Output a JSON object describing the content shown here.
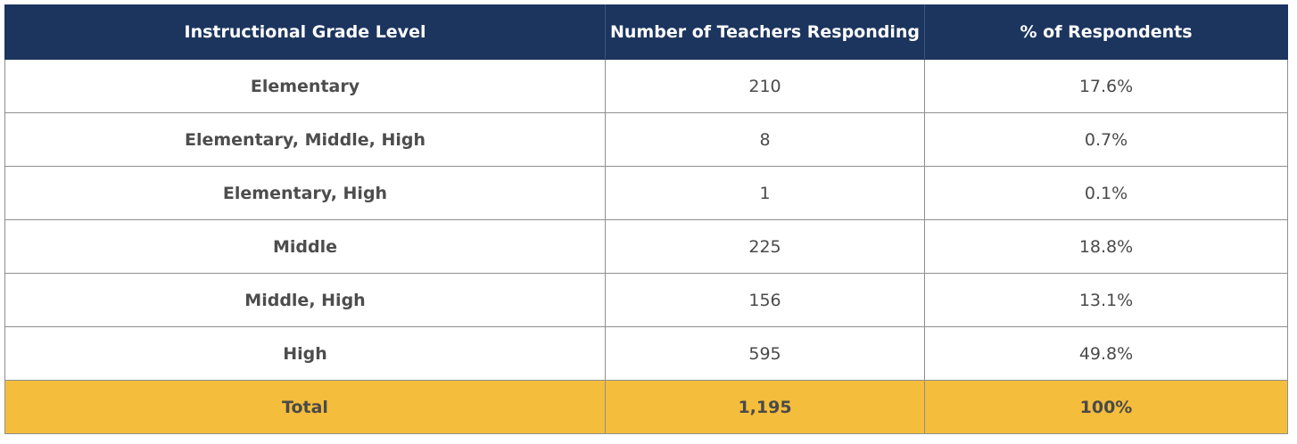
{
  "chart_data": {
    "type": "table",
    "columns": [
      "Instructional  Grade Level",
      "Number of Teachers Responding",
      "% of Respondents"
    ],
    "rows": [
      {
        "level": "Elementary",
        "teachers": "210",
        "percent": "17.6%"
      },
      {
        "level": "Elementary, Middle, High",
        "teachers": "8",
        "percent": "0.7%"
      },
      {
        "level": "Elementary, High",
        "teachers": "1",
        "percent": "0.1%"
      },
      {
        "level": "Middle",
        "teachers": "225",
        "percent": "18.8%"
      },
      {
        "level": "Middle, High",
        "teachers": "156",
        "percent": "13.1%"
      },
      {
        "level": "High",
        "teachers": "595",
        "percent": "49.8%"
      }
    ],
    "total": {
      "level": "Total",
      "teachers": "1,195",
      "percent": "100%"
    }
  },
  "colors": {
    "header_bg": "#1c355e",
    "header_text": "#ffffff",
    "total_bg": "#f4bd3b",
    "body_text": "#4a4a4a",
    "border": "#8f8f8f"
  }
}
